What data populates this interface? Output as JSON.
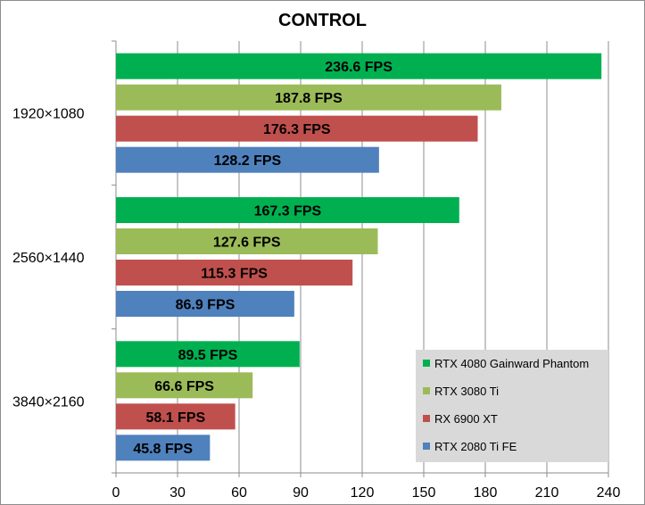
{
  "chart_data": {
    "type": "bar",
    "orientation": "horizontal",
    "title": "CONTROL",
    "categories": [
      "1920×1080",
      "2560×1440",
      "3840×2160"
    ],
    "series": [
      {
        "name": "RTX 4080 Gainward Phantom",
        "color": "#00b050",
        "values": [
          236.6,
          167.3,
          89.5
        ],
        "labels": [
          "236.6 FPS",
          "167.3 FPS",
          "89.5 FPS"
        ]
      },
      {
        "name": "RTX 3080 Ti",
        "color": "#9bbb59",
        "values": [
          187.8,
          127.6,
          66.6
        ],
        "labels": [
          "187.8 FPS",
          "127.6 FPS",
          "66.6 FPS"
        ]
      },
      {
        "name": "RX 6900 XT",
        "color": "#c0504d",
        "values": [
          176.3,
          115.3,
          58.1
        ],
        "labels": [
          "176.3 FPS",
          "115.3 FPS",
          "58.1 FPS"
        ]
      },
      {
        "name": "RTX 2080 Ti FE",
        "color": "#4f81bd",
        "values": [
          128.2,
          86.9,
          45.8
        ],
        "labels": [
          "128.2 FPS",
          "86.9 FPS",
          "45.8 FPS"
        ]
      }
    ],
    "xlim": [
      0,
      240
    ],
    "xticks": [
      "0",
      "30",
      "60",
      "90",
      "120",
      "150",
      "180",
      "210",
      "240"
    ],
    "grid": true,
    "legend": "bottom-right"
  }
}
